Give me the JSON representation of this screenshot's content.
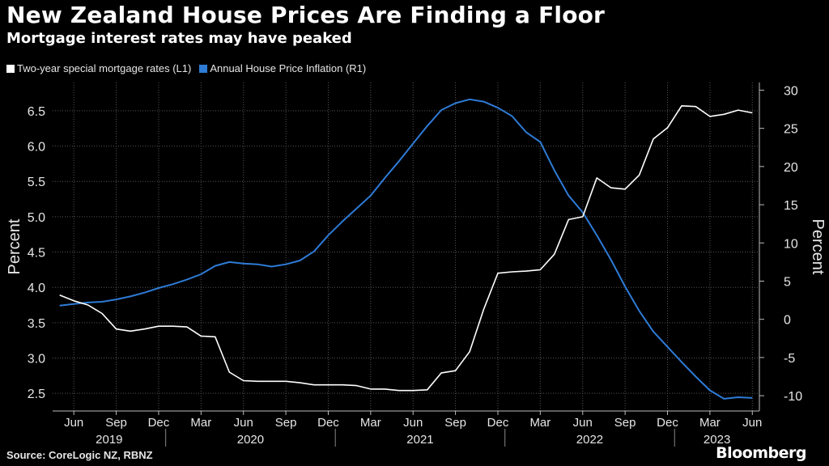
{
  "header": {
    "title": "New Zealand House Prices Are Finding a Floor",
    "subtitle": "Mortgage interest rates may have peaked"
  },
  "footer": {
    "source": "Source: CoreLogic NZ, RBNZ",
    "brand": "Bloomberg"
  },
  "colors": {
    "background": "#000000",
    "mortgage": "#ffffff",
    "house_price": "#2e7bd6",
    "grid": "#555555"
  },
  "chart_data": {
    "type": "line",
    "title": "New Zealand House Prices Are Finding a Floor",
    "subtitle": "Mortgage interest rates may have peaked",
    "ylabel_left": "Percent",
    "ylabel_right": "Percent",
    "ylim_left": [
      2.25,
      6.9
    ],
    "ylim_right": [
      -12,
      31
    ],
    "yticks_left": [
      "2.5",
      "3.0",
      "3.5",
      "4.0",
      "4.5",
      "5.0",
      "5.5",
      "6.0",
      "6.5"
    ],
    "yticks_right": [
      "-10",
      "-5",
      "0",
      "5",
      "10",
      "15",
      "20",
      "25",
      "30"
    ],
    "xrange": [
      "2019-05",
      "2023-06"
    ],
    "x_month_labels": [
      {
        "label": "Jun",
        "date": "2019-06"
      },
      {
        "label": "Sep",
        "date": "2019-09"
      },
      {
        "label": "Dec",
        "date": "2019-12"
      },
      {
        "label": "Mar",
        "date": "2020-03"
      },
      {
        "label": "Jun",
        "date": "2020-06"
      },
      {
        "label": "Sep",
        "date": "2020-09"
      },
      {
        "label": "Dec",
        "date": "2020-12"
      },
      {
        "label": "Mar",
        "date": "2021-03"
      },
      {
        "label": "Jun",
        "date": "2021-06"
      },
      {
        "label": "Sep",
        "date": "2021-09"
      },
      {
        "label": "Dec",
        "date": "2021-12"
      },
      {
        "label": "Mar",
        "date": "2022-03"
      },
      {
        "label": "Jun",
        "date": "2022-06"
      },
      {
        "label": "Sep",
        "date": "2022-09"
      },
      {
        "label": "Dec",
        "date": "2022-12"
      },
      {
        "label": "Mar",
        "date": "2023-03"
      },
      {
        "label": "Jun",
        "date": "2023-06"
      }
    ],
    "x_year_labels": [
      "2019",
      "2020",
      "2021",
      "2022",
      "2023"
    ],
    "grid": true,
    "legend_placement": "top-left",
    "series": [
      {
        "name": "Two-year special mortgage rates (L1)",
        "axis": "left",
        "x": [
          "2019-05",
          "2019-06",
          "2019-07",
          "2019-08",
          "2019-09",
          "2019-10",
          "2019-11",
          "2019-12",
          "2020-01",
          "2020-02",
          "2020-03",
          "2020-04",
          "2020-05",
          "2020-06",
          "2020-07",
          "2020-08",
          "2020-09",
          "2020-10",
          "2020-11",
          "2020-12",
          "2021-01",
          "2021-02",
          "2021-03",
          "2021-04",
          "2021-05",
          "2021-06",
          "2021-07",
          "2021-08",
          "2021-09",
          "2021-10",
          "2021-11",
          "2021-12",
          "2022-01",
          "2022-02",
          "2022-03",
          "2022-04",
          "2022-05",
          "2022-06",
          "2022-07",
          "2022-08",
          "2022-09",
          "2022-10",
          "2022-11",
          "2022-12",
          "2023-01",
          "2023-02",
          "2023-03",
          "2023-04",
          "2023-05",
          "2023-06"
        ],
        "values": [
          3.89,
          3.81,
          3.75,
          3.63,
          3.41,
          3.38,
          3.41,
          3.45,
          3.45,
          3.44,
          3.31,
          3.3,
          2.8,
          2.68,
          2.67,
          2.67,
          2.67,
          2.65,
          2.62,
          2.62,
          2.62,
          2.61,
          2.56,
          2.56,
          2.54,
          2.54,
          2.55,
          2.79,
          2.82,
          3.09,
          3.69,
          4.2,
          4.22,
          4.23,
          4.25,
          4.47,
          4.96,
          5.0,
          5.55,
          5.41,
          5.39,
          5.59,
          6.1,
          6.26,
          6.57,
          6.56,
          6.42,
          6.45,
          6.51,
          6.47
        ]
      },
      {
        "name": "Annual House Price Inflation (R1)",
        "axis": "right",
        "x": [
          "2019-05",
          "2019-06",
          "2019-07",
          "2019-08",
          "2019-09",
          "2019-10",
          "2019-11",
          "2019-12",
          "2020-01",
          "2020-02",
          "2020-03",
          "2020-04",
          "2020-05",
          "2020-06",
          "2020-07",
          "2020-08",
          "2020-09",
          "2020-10",
          "2020-11",
          "2020-12",
          "2021-01",
          "2021-02",
          "2021-03",
          "2021-04",
          "2021-05",
          "2021-06",
          "2021-07",
          "2021-08",
          "2021-09",
          "2021-10",
          "2021-11",
          "2021-12",
          "2022-01",
          "2022-02",
          "2022-03",
          "2022-04",
          "2022-05",
          "2022-06",
          "2022-07",
          "2022-08",
          "2022-09",
          "2022-10",
          "2022-11",
          "2022-12",
          "2023-01",
          "2023-02",
          "2023-03",
          "2023-04",
          "2023-05",
          "2023-06"
        ],
        "values": [
          1.8,
          2.0,
          2.2,
          2.3,
          2.6,
          3.0,
          3.5,
          4.1,
          4.6,
          5.2,
          5.9,
          7.0,
          7.5,
          7.3,
          7.2,
          6.9,
          7.2,
          7.7,
          8.9,
          11.0,
          12.8,
          14.5,
          16.2,
          18.5,
          20.7,
          23.0,
          25.3,
          27.4,
          28.3,
          28.8,
          28.5,
          27.7,
          26.6,
          24.5,
          23.2,
          19.5,
          16.2,
          14.0,
          11.0,
          7.8,
          4.3,
          1.1,
          -1.6,
          -3.6,
          -5.6,
          -7.5,
          -9.3,
          -10.4,
          -10.2,
          -10.3
        ]
      }
    ]
  }
}
